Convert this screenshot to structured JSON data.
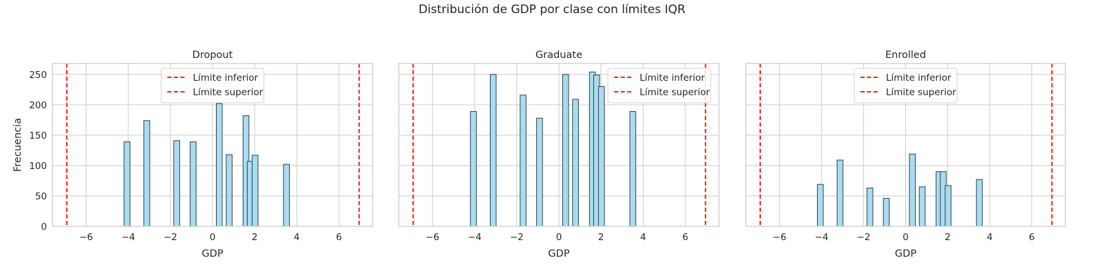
{
  "figure": {
    "title": "Distribución de GDP por clase con límites IQR",
    "ylabel": "Frecuencia",
    "xlabel": "GDP"
  },
  "chart_data": [
    {
      "type": "bar",
      "title": "Dropout",
      "xlabel": "GDP",
      "ylabel": "Frecuencia",
      "xlim": [
        -7.6,
        7.6
      ],
      "ylim": [
        0,
        268
      ],
      "xticks": [
        -6,
        -4,
        -2,
        0,
        2,
        4,
        6
      ],
      "yticks": [
        0,
        50,
        100,
        150,
        200,
        250
      ],
      "grid": true,
      "legend_position": "top-center",
      "bar_color": "#a9dcf0",
      "bar_edge": "#2f3e4a",
      "bars": [
        {
          "x": -4.06,
          "value": 139
        },
        {
          "x": -3.12,
          "value": 174
        },
        {
          "x": -1.7,
          "value": 141
        },
        {
          "x": -0.92,
          "value": 139
        },
        {
          "x": 0.32,
          "value": 202
        },
        {
          "x": 0.79,
          "value": 118
        },
        {
          "x": 1.59,
          "value": 182
        },
        {
          "x": 1.79,
          "value": 107
        },
        {
          "x": 2.02,
          "value": 117
        },
        {
          "x": 3.51,
          "value": 102
        }
      ],
      "bin_width": 0.28,
      "lines": [
        {
          "name": "Límite inferior",
          "x": -6.92,
          "color": "#ff0000"
        },
        {
          "name": "Límite superior",
          "x": 6.96,
          "color": "#ff0000"
        }
      ]
    },
    {
      "type": "bar",
      "title": "Graduate",
      "xlabel": "GDP",
      "ylabel": "",
      "xlim": [
        -7.6,
        7.6
      ],
      "ylim": [
        0,
        268
      ],
      "xticks": [
        -6,
        -4,
        -2,
        0,
        2,
        4,
        6
      ],
      "yticks": [
        0,
        50,
        100,
        150,
        200,
        250
      ],
      "grid": true,
      "legend_position": "top-right",
      "bar_color": "#a9dcf0",
      "bar_edge": "#2f3e4a",
      "bars": [
        {
          "x": -4.06,
          "value": 189
        },
        {
          "x": -3.12,
          "value": 250
        },
        {
          "x": -1.7,
          "value": 216
        },
        {
          "x": -0.92,
          "value": 178
        },
        {
          "x": 0.32,
          "value": 250
        },
        {
          "x": 0.79,
          "value": 209
        },
        {
          "x": 1.59,
          "value": 254
        },
        {
          "x": 1.79,
          "value": 249
        },
        {
          "x": 2.02,
          "value": 230
        },
        {
          "x": 3.51,
          "value": 189
        }
      ],
      "bin_width": 0.28,
      "lines": [
        {
          "name": "Límite inferior",
          "x": -6.92,
          "color": "#ff0000"
        },
        {
          "name": "Límite superior",
          "x": 6.96,
          "color": "#ff0000"
        }
      ]
    },
    {
      "type": "bar",
      "title": "Enrolled",
      "xlabel": "GDP",
      "ylabel": "",
      "xlim": [
        -7.6,
        7.6
      ],
      "ylim": [
        0,
        268
      ],
      "xticks": [
        -6,
        -4,
        -2,
        0,
        2,
        4,
        6
      ],
      "yticks": [
        0,
        50,
        100,
        150,
        200,
        250
      ],
      "grid": true,
      "legend_position": "top-center",
      "bar_color": "#a9dcf0",
      "bar_edge": "#2f3e4a",
      "bars": [
        {
          "x": -4.06,
          "value": 69
        },
        {
          "x": -3.12,
          "value": 109
        },
        {
          "x": -1.7,
          "value": 63
        },
        {
          "x": -0.92,
          "value": 46
        },
        {
          "x": 0.32,
          "value": 119
        },
        {
          "x": 0.79,
          "value": 65
        },
        {
          "x": 1.59,
          "value": 90
        },
        {
          "x": 1.79,
          "value": 90
        },
        {
          "x": 2.02,
          "value": 67
        },
        {
          "x": 3.51,
          "value": 77
        }
      ],
      "bin_width": 0.28,
      "lines": [
        {
          "name": "Límite inferior",
          "x": -6.92,
          "color": "#ff0000"
        },
        {
          "name": "Límite superior",
          "x": 6.96,
          "color": "#ff0000"
        }
      ]
    }
  ]
}
